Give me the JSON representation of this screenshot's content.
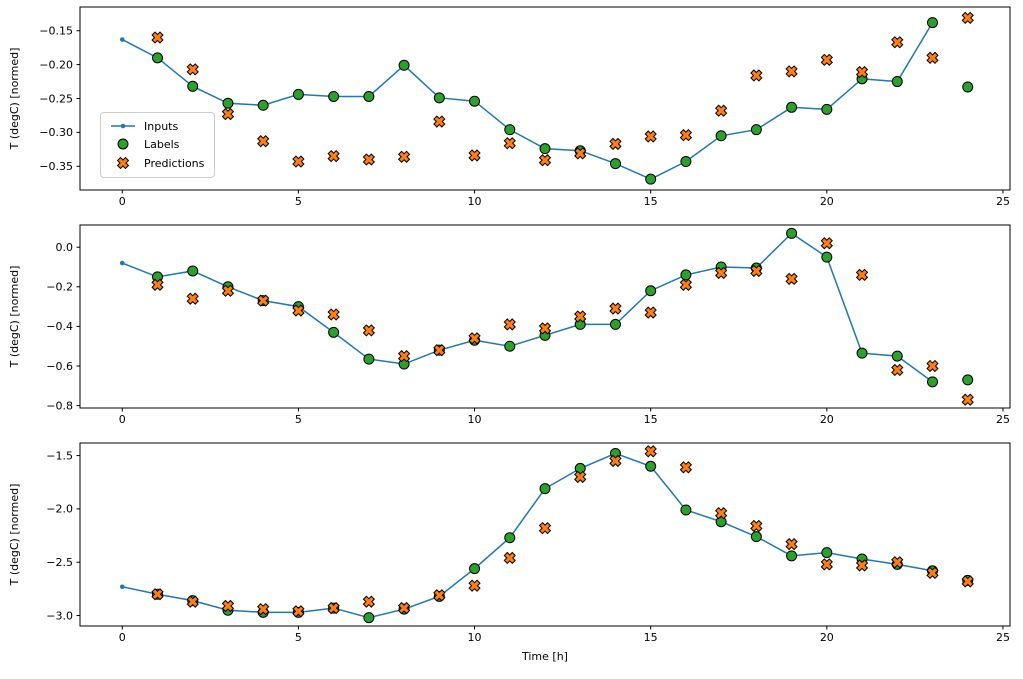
{
  "figure": {
    "xlabel": "Time [h]",
    "legend": [
      {
        "label": "Inputs"
      },
      {
        "label": "Labels"
      },
      {
        "label": "Predictions"
      }
    ],
    "colors": {
      "inputs": "#1f77b4",
      "labels": "#2ca02c",
      "predictions": "#ff7f0e",
      "edge": "#000000"
    }
  },
  "chart_data": [
    {
      "type": "line",
      "title": "",
      "xlabel": "",
      "ylabel": "T (degC) [normed]",
      "xlim": [
        -1.2,
        25.2
      ],
      "ylim": [
        -0.385,
        -0.115
      ],
      "grid": false,
      "legend_position": "center left",
      "xticks": [
        0,
        5,
        10,
        15,
        20,
        25
      ],
      "xticklabels": [
        "0",
        "5",
        "10",
        "15",
        "20",
        "25"
      ],
      "yticks": [
        -0.15,
        -0.2,
        -0.25,
        -0.3,
        -0.35
      ],
      "yticklabels": [
        "−0.15",
        "−0.20",
        "−0.25",
        "−0.30",
        "−0.35"
      ],
      "series": [
        {
          "name": "Inputs",
          "marker": "dot-line",
          "x": [
            0,
            1,
            2,
            3,
            4,
            5,
            6,
            7,
            8,
            9,
            10,
            11,
            12,
            13,
            14,
            15,
            16,
            17,
            18,
            19,
            20,
            21,
            22,
            23
          ],
          "y": [
            -0.163,
            -0.19,
            -0.232,
            -0.257,
            -0.26,
            -0.244,
            -0.247,
            -0.247,
            -0.201,
            -0.249,
            -0.254,
            -0.296,
            -0.324,
            -0.327,
            -0.346,
            -0.369,
            -0.343,
            -0.305,
            -0.296,
            -0.263,
            -0.266,
            -0.221,
            -0.225,
            -0.138
          ]
        },
        {
          "name": "Labels",
          "marker": "circle",
          "x": [
            1,
            2,
            3,
            4,
            5,
            6,
            7,
            8,
            9,
            10,
            11,
            12,
            13,
            14,
            15,
            16,
            17,
            18,
            19,
            20,
            21,
            22,
            23,
            24
          ],
          "y": [
            -0.19,
            -0.232,
            -0.257,
            -0.26,
            -0.244,
            -0.247,
            -0.247,
            -0.201,
            -0.249,
            -0.254,
            -0.296,
            -0.324,
            -0.327,
            -0.346,
            -0.369,
            -0.343,
            -0.305,
            -0.296,
            -0.263,
            -0.266,
            -0.221,
            -0.225,
            -0.138,
            -0.233
          ]
        },
        {
          "name": "Predictions",
          "marker": "X",
          "x": [
            1,
            2,
            3,
            4,
            5,
            6,
            7,
            8,
            9,
            10,
            11,
            12,
            13,
            14,
            15,
            16,
            17,
            18,
            19,
            20,
            21,
            22,
            23,
            24
          ],
          "y": [
            -0.16,
            -0.207,
            -0.273,
            -0.313,
            -0.343,
            -0.335,
            -0.34,
            -0.336,
            -0.284,
            -0.334,
            -0.316,
            -0.341,
            -0.331,
            -0.317,
            -0.306,
            -0.304,
            -0.268,
            -0.216,
            -0.21,
            -0.193,
            -0.211,
            -0.167,
            -0.19,
            -0.131
          ]
        }
      ]
    },
    {
      "type": "line",
      "title": "",
      "xlabel": "",
      "ylabel": "T (degC) [normed]",
      "xlim": [
        -1.2,
        25.2
      ],
      "ylim": [
        -0.812,
        0.112
      ],
      "grid": false,
      "xticks": [
        0,
        5,
        10,
        15,
        20,
        25
      ],
      "xticklabels": [
        "0",
        "5",
        "10",
        "15",
        "20",
        "25"
      ],
      "yticks": [
        0.0,
        -0.2,
        -0.4,
        -0.6,
        -0.8
      ],
      "yticklabels": [
        "0.0",
        "−0.2",
        "−0.4",
        "−0.6",
        "−0.8"
      ],
      "series": [
        {
          "name": "Inputs",
          "marker": "dot-line",
          "x": [
            0,
            1,
            2,
            3,
            4,
            5,
            6,
            7,
            8,
            9,
            10,
            11,
            12,
            13,
            14,
            15,
            16,
            17,
            18,
            19,
            20,
            21,
            22,
            23
          ],
          "y": [
            -0.08,
            -0.15,
            -0.12,
            -0.2,
            -0.27,
            -0.3,
            -0.43,
            -0.565,
            -0.59,
            -0.52,
            -0.47,
            -0.5,
            -0.445,
            -0.39,
            -0.39,
            -0.22,
            -0.14,
            -0.1,
            -0.105,
            0.07,
            -0.05,
            -0.535,
            -0.55,
            -0.68
          ]
        },
        {
          "name": "Labels",
          "marker": "circle",
          "x": [
            1,
            2,
            3,
            4,
            5,
            6,
            7,
            8,
            9,
            10,
            11,
            12,
            13,
            14,
            15,
            16,
            17,
            18,
            19,
            20,
            21,
            22,
            23,
            24
          ],
          "y": [
            -0.15,
            -0.12,
            -0.2,
            -0.27,
            -0.3,
            -0.43,
            -0.565,
            -0.59,
            -0.52,
            -0.47,
            -0.5,
            -0.445,
            -0.39,
            -0.39,
            -0.22,
            -0.14,
            -0.1,
            -0.105,
            0.07,
            -0.05,
            -0.535,
            -0.55,
            -0.68,
            -0.67
          ]
        },
        {
          "name": "Predictions",
          "marker": "X",
          "x": [
            1,
            2,
            3,
            4,
            5,
            6,
            7,
            8,
            9,
            10,
            11,
            12,
            13,
            14,
            15,
            16,
            17,
            18,
            19,
            20,
            21,
            22,
            23,
            24
          ],
          "y": [
            -0.19,
            -0.26,
            -0.22,
            -0.27,
            -0.32,
            -0.34,
            -0.42,
            -0.55,
            -0.52,
            -0.46,
            -0.39,
            -0.41,
            -0.35,
            -0.31,
            -0.33,
            -0.19,
            -0.13,
            -0.12,
            -0.16,
            0.02,
            -0.14,
            -0.62,
            -0.6,
            -0.77
          ]
        }
      ]
    },
    {
      "type": "line",
      "title": "",
      "xlabel": "Time [h]",
      "ylabel": "T (degC) [normed]",
      "xlim": [
        -1.2,
        25.2
      ],
      "ylim": [
        -3.098,
        -1.382
      ],
      "grid": false,
      "xticks": [
        0,
        5,
        10,
        15,
        20,
        25
      ],
      "xticklabels": [
        "0",
        "5",
        "10",
        "15",
        "20",
        "25"
      ],
      "yticks": [
        -1.5,
        -2.0,
        -2.5,
        -3.0
      ],
      "yticklabels": [
        "−1.5",
        "−2.0",
        "−2.5",
        "−3.0"
      ],
      "series": [
        {
          "name": "Inputs",
          "marker": "dot-line",
          "x": [
            0,
            1,
            2,
            3,
            4,
            5,
            6,
            7,
            8,
            9,
            10,
            11,
            12,
            13,
            14,
            15,
            16,
            17,
            18,
            19,
            20,
            21,
            22,
            23
          ],
          "y": [
            -2.73,
            -2.8,
            -2.86,
            -2.95,
            -2.97,
            -2.97,
            -2.93,
            -3.02,
            -2.94,
            -2.82,
            -2.56,
            -2.27,
            -1.81,
            -1.62,
            -1.48,
            -1.6,
            -2.01,
            -2.12,
            -2.26,
            -2.44,
            -2.41,
            -2.47,
            -2.52,
            -2.58
          ]
        },
        {
          "name": "Labels",
          "marker": "circle",
          "x": [
            1,
            2,
            3,
            4,
            5,
            6,
            7,
            8,
            9,
            10,
            11,
            12,
            13,
            14,
            15,
            16,
            17,
            18,
            19,
            20,
            21,
            22,
            23,
            24
          ],
          "y": [
            -2.8,
            -2.86,
            -2.95,
            -2.97,
            -2.97,
            -2.93,
            -3.02,
            -2.94,
            -2.82,
            -2.56,
            -2.27,
            -1.81,
            -1.62,
            -1.48,
            -1.6,
            -2.01,
            -2.12,
            -2.26,
            -2.44,
            -2.41,
            -2.47,
            -2.52,
            -2.58,
            -2.67
          ]
        },
        {
          "name": "Predictions",
          "marker": "X",
          "x": [
            1,
            2,
            3,
            4,
            5,
            6,
            7,
            8,
            9,
            10,
            11,
            12,
            13,
            14,
            15,
            16,
            17,
            18,
            19,
            20,
            21,
            22,
            23,
            24
          ],
          "y": [
            -2.8,
            -2.87,
            -2.91,
            -2.94,
            -2.96,
            -2.93,
            -2.87,
            -2.93,
            -2.81,
            -2.72,
            -2.46,
            -2.18,
            -1.7,
            -1.55,
            -1.46,
            -1.61,
            -2.04,
            -2.16,
            -2.33,
            -2.52,
            -2.53,
            -2.5,
            -2.6,
            -2.68
          ]
        }
      ]
    }
  ]
}
